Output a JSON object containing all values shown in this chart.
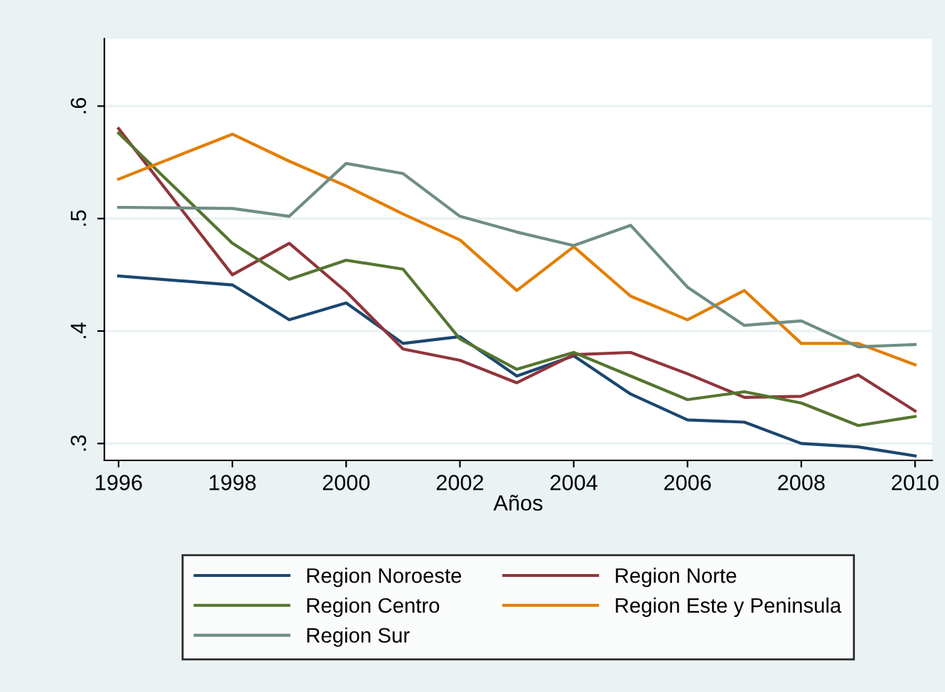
{
  "chart_data": {
    "type": "line",
    "xlabel": "Años",
    "x": [
      1996,
      1998,
      1999,
      2000,
      2001,
      2002,
      2003,
      2004,
      2005,
      2006,
      2007,
      2008,
      2009,
      2010
    ],
    "series": [
      {
        "name": "Region Noroeste",
        "color": "#1a476f",
        "values": [
          0.449,
          0.441,
          0.41,
          0.425,
          0.389,
          0.395,
          0.36,
          0.378,
          0.344,
          0.321,
          0.319,
          0.3,
          0.297,
          0.289
        ]
      },
      {
        "name": "Region Norte",
        "color": "#90353b",
        "values": [
          0.58,
          0.45,
          0.478,
          0.435,
          0.384,
          0.374,
          0.354,
          0.379,
          0.381,
          0.362,
          0.341,
          0.342,
          0.361,
          0.329
        ]
      },
      {
        "name": "Region Centro",
        "color": "#55752f",
        "values": [
          0.576,
          0.478,
          0.446,
          0.463,
          0.455,
          0.393,
          0.366,
          0.381,
          0.36,
          0.339,
          0.346,
          0.336,
          0.316,
          0.324
        ]
      },
      {
        "name": "Region Este y Peninsula",
        "color": "#e37e00",
        "values": [
          0.535,
          0.575,
          0.551,
          0.529,
          0.504,
          0.481,
          0.436,
          0.475,
          0.431,
          0.41,
          0.436,
          0.389,
          0.389,
          0.37
        ]
      },
      {
        "name": "Region Sur",
        "color": "#6e8e84",
        "values": [
          0.51,
          0.509,
          0.502,
          0.549,
          0.54,
          0.502,
          0.488,
          0.476,
          0.494,
          0.439,
          0.405,
          0.409,
          0.386,
          0.388
        ]
      }
    ],
    "xlim": [
      1995.75,
      2010.3
    ],
    "ylim": [
      0.285,
      0.66
    ],
    "xticks": [
      1996,
      1998,
      2000,
      2002,
      2004,
      2006,
      2008,
      2010
    ],
    "yticks": [
      {
        "value": 0.3,
        "label": ".3"
      },
      {
        "value": 0.4,
        "label": ".4"
      },
      {
        "value": 0.5,
        "label": ".5"
      },
      {
        "value": 0.6,
        "label": ".6"
      }
    ],
    "grid": "y",
    "legend": "bottom",
    "marker": "none",
    "line_style": "solid"
  }
}
